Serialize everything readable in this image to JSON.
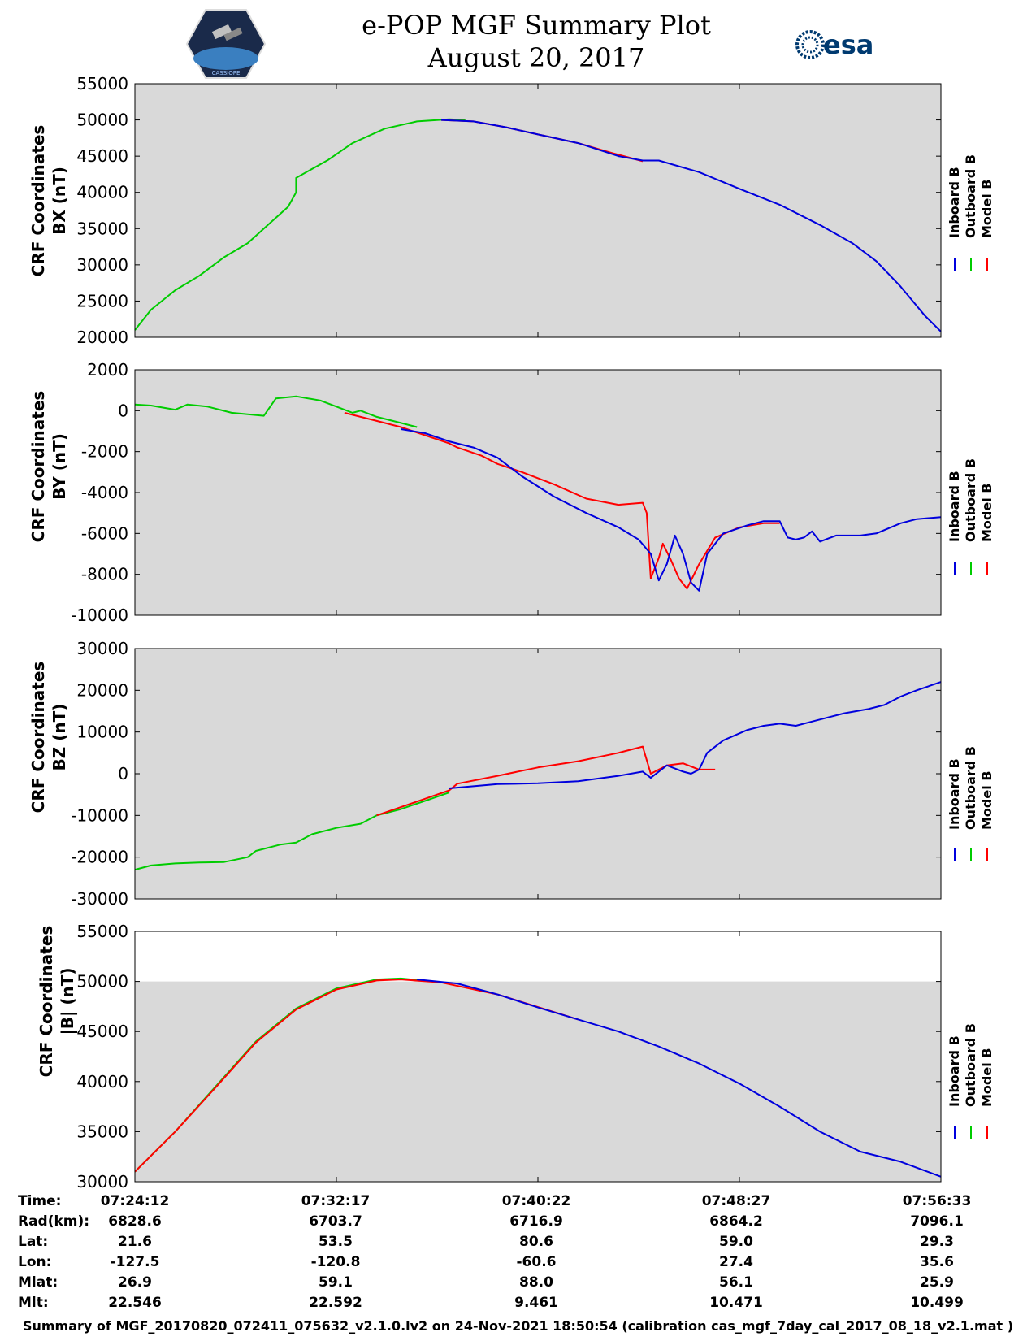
{
  "header": {
    "title_line1": "e-POP MGF Summary Plot",
    "title_line2": "August 20, 2017",
    "left_logo": "cassiope-satellite-logo",
    "left_logo_text": "CASSIOPE",
    "right_logo": "esa-logo",
    "right_logo_text": "esa"
  },
  "legend": {
    "labels": [
      "Inboard B",
      "Outboard B",
      "Model B"
    ],
    "colors": [
      "#0000dd",
      "#00cc00",
      "#ff0000"
    ]
  },
  "colors": {
    "plot_bg": "#d9d9d9",
    "inboard": "#0000dd",
    "outboard": "#00cc00",
    "model": "#ff0000"
  },
  "chart_data": [
    {
      "type": "line",
      "ylabel": "CRF Coordinates\nBX (nT)",
      "ylabel_line1": "CRF Coordinates",
      "ylabel_line2": "BX (nT)",
      "ylim": [
        20000,
        55000
      ],
      "yticks": [
        20000,
        25000,
        30000,
        35000,
        40000,
        45000,
        50000,
        55000
      ],
      "xlim": [
        0,
        1
      ],
      "shade_to": 55000,
      "series": [
        {
          "name": "Outboard B",
          "points": [
            [
              0,
              21000
            ],
            [
              0.02,
              23800
            ],
            [
              0.05,
              26500
            ],
            [
              0.08,
              28500
            ],
            [
              0.11,
              31000
            ],
            [
              0.14,
              33000
            ],
            [
              0.16,
              35000
            ],
            [
              0.19,
              38000
            ],
            [
              0.2,
              40000
            ],
            [
              0.2,
              42000
            ],
            [
              0.24,
              44500
            ],
            [
              0.27,
              46800
            ],
            [
              0.31,
              48800
            ],
            [
              0.35,
              49800
            ],
            [
              0.39,
              50100
            ],
            [
              0.41,
              50000
            ]
          ]
        },
        {
          "name": "Model B",
          "points": [
            [
              0.38,
              50000
            ],
            [
              0.42,
              49800
            ],
            [
              0.46,
              49000
            ],
            [
              0.5,
              48000
            ],
            [
              0.55,
              46800
            ],
            [
              0.59,
              45500
            ],
            [
              0.63,
              44300
            ]
          ]
        },
        {
          "name": "Inboard B",
          "points": [
            [
              0.38,
              50000
            ],
            [
              0.42,
              49800
            ],
            [
              0.46,
              49000
            ],
            [
              0.5,
              48000
            ],
            [
              0.55,
              46800
            ],
            [
              0.6,
              45000
            ],
            [
              0.63,
              44400
            ],
            [
              0.65,
              44400
            ],
            [
              0.7,
              42800
            ],
            [
              0.75,
              40500
            ],
            [
              0.8,
              38300
            ],
            [
              0.85,
              35500
            ],
            [
              0.89,
              33000
            ],
            [
              0.92,
              30500
            ],
            [
              0.95,
              27000
            ],
            [
              0.98,
              23000
            ],
            [
              1,
              20800
            ]
          ]
        }
      ]
    },
    {
      "type": "line",
      "ylabel": "CRF Coordinates\nBY (nT)",
      "ylabel_line1": "CRF Coordinates",
      "ylabel_line2": "BY (nT)",
      "ylim": [
        -10000,
        2000
      ],
      "yticks": [
        -10000,
        -8000,
        -6000,
        -4000,
        -2000,
        0,
        2000
      ],
      "xlim": [
        0,
        1
      ],
      "shade_to": 2000,
      "series": [
        {
          "name": "Outboard B",
          "points": [
            [
              0,
              300
            ],
            [
              0.02,
              250
            ],
            [
              0.05,
              50
            ],
            [
              0.065,
              300
            ],
            [
              0.09,
              200
            ],
            [
              0.12,
              -100
            ],
            [
              0.16,
              -250
            ],
            [
              0.175,
              600
            ],
            [
              0.2,
              700
            ],
            [
              0.23,
              500
            ],
            [
              0.25,
              200
            ],
            [
              0.27,
              -100
            ],
            [
              0.28,
              0
            ],
            [
              0.3,
              -300
            ],
            [
              0.33,
              -600
            ],
            [
              0.35,
              -800
            ]
          ]
        },
        {
          "name": "Model B",
          "points": [
            [
              0.26,
              -100
            ],
            [
              0.3,
              -500
            ],
            [
              0.33,
              -800
            ],
            [
              0.36,
              -1200
            ],
            [
              0.39,
              -1600
            ],
            [
              0.4,
              -1800
            ],
            [
              0.43,
              -2200
            ],
            [
              0.45,
              -2600
            ],
            [
              0.48,
              -3000
            ],
            [
              0.52,
              -3600
            ],
            [
              0.56,
              -4300
            ],
            [
              0.6,
              -4600
            ],
            [
              0.63,
              -4500
            ],
            [
              0.635,
              -5000
            ],
            [
              0.64,
              -8200
            ],
            [
              0.65,
              -7200
            ],
            [
              0.655,
              -6500
            ],
            [
              0.665,
              -7300
            ],
            [
              0.675,
              -8200
            ],
            [
              0.685,
              -8700
            ],
            [
              0.7,
              -7500
            ],
            [
              0.72,
              -6200
            ],
            [
              0.75,
              -5700
            ],
            [
              0.78,
              -5500
            ],
            [
              0.8,
              -5500
            ]
          ]
        },
        {
          "name": "Inboard B",
          "points": [
            [
              0.33,
              -900
            ],
            [
              0.36,
              -1100
            ],
            [
              0.39,
              -1500
            ],
            [
              0.42,
              -1800
            ],
            [
              0.45,
              -2300
            ],
            [
              0.48,
              -3200
            ],
            [
              0.52,
              -4200
            ],
            [
              0.56,
              -5000
            ],
            [
              0.6,
              -5700
            ],
            [
              0.625,
              -6300
            ],
            [
              0.64,
              -7000
            ],
            [
              0.65,
              -8300
            ],
            [
              0.66,
              -7500
            ],
            [
              0.67,
              -6100
            ],
            [
              0.68,
              -7000
            ],
            [
              0.69,
              -8400
            ],
            [
              0.7,
              -8800
            ],
            [
              0.71,
              -7000
            ],
            [
              0.73,
              -6000
            ],
            [
              0.76,
              -5600
            ],
            [
              0.78,
              -5400
            ],
            [
              0.8,
              -5400
            ],
            [
              0.81,
              -6200
            ],
            [
              0.82,
              -6300
            ],
            [
              0.83,
              -6200
            ],
            [
              0.84,
              -5900
            ],
            [
              0.85,
              -6400
            ],
            [
              0.87,
              -6100
            ],
            [
              0.9,
              -6100
            ],
            [
              0.92,
              -6000
            ],
            [
              0.95,
              -5500
            ],
            [
              0.97,
              -5300
            ],
            [
              1,
              -5200
            ]
          ]
        }
      ]
    },
    {
      "type": "line",
      "ylabel": "CRF Coordinates\nBZ (nT)",
      "ylabel_line1": "CRF Coordinates",
      "ylabel_line2": "BZ (nT)",
      "ylim": [
        -30000,
        30000
      ],
      "yticks": [
        -30000,
        -20000,
        -10000,
        0,
        10000,
        20000,
        30000
      ],
      "xlim": [
        0,
        1
      ],
      "shade_to": 30000,
      "series": [
        {
          "name": "Outboard B",
          "points": [
            [
              0,
              -23000
            ],
            [
              0.02,
              -22000
            ],
            [
              0.05,
              -21500
            ],
            [
              0.08,
              -21300
            ],
            [
              0.11,
              -21200
            ],
            [
              0.14,
              -20000
            ],
            [
              0.15,
              -18500
            ],
            [
              0.18,
              -17000
            ],
            [
              0.2,
              -16500
            ],
            [
              0.22,
              -14500
            ],
            [
              0.25,
              -13000
            ],
            [
              0.28,
              -12000
            ],
            [
              0.3,
              -10000
            ],
            [
              0.33,
              -8500
            ],
            [
              0.36,
              -6500
            ],
            [
              0.39,
              -4500
            ]
          ]
        },
        {
          "name": "Model B",
          "points": [
            [
              0.3,
              -10000
            ],
            [
              0.33,
              -8000
            ],
            [
              0.36,
              -6000
            ],
            [
              0.39,
              -4000
            ],
            [
              0.4,
              -2400
            ],
            [
              0.45,
              -500
            ],
            [
              0.5,
              1500
            ],
            [
              0.55,
              3000
            ],
            [
              0.6,
              5000
            ],
            [
              0.63,
              6500
            ],
            [
              0.64,
              0
            ],
            [
              0.66,
              2000
            ],
            [
              0.68,
              2500
            ],
            [
              0.7,
              1000
            ],
            [
              0.72,
              1000
            ]
          ]
        },
        {
          "name": "Inboard B",
          "points": [
            [
              0.39,
              -3500
            ],
            [
              0.45,
              -2500
            ],
            [
              0.5,
              -2300
            ],
            [
              0.55,
              -1800
            ],
            [
              0.6,
              -500
            ],
            [
              0.63,
              500
            ],
            [
              0.64,
              -1000
            ],
            [
              0.66,
              2000
            ],
            [
              0.68,
              500
            ],
            [
              0.69,
              0
            ],
            [
              0.7,
              1000
            ],
            [
              0.71,
              5000
            ],
            [
              0.73,
              8000
            ],
            [
              0.76,
              10500
            ],
            [
              0.78,
              11500
            ],
            [
              0.8,
              12000
            ],
            [
              0.82,
              11500
            ],
            [
              0.84,
              12500
            ],
            [
              0.86,
              13500
            ],
            [
              0.88,
              14500
            ],
            [
              0.91,
              15500
            ],
            [
              0.93,
              16500
            ],
            [
              0.95,
              18500
            ],
            [
              0.97,
              20000
            ],
            [
              1,
              22000
            ]
          ]
        }
      ]
    },
    {
      "type": "line",
      "ylabel": "CRF Coordinates\n|B| (nT)",
      "ylabel_line1": "CRF Coordinates",
      "ylabel_line2": "|B| (nT)",
      "ylim": [
        30000,
        55000
      ],
      "yticks": [
        30000,
        35000,
        40000,
        45000,
        50000,
        55000
      ],
      "xlim": [
        0,
        1
      ],
      "shade_to": 50000,
      "series": [
        {
          "name": "Outboard B",
          "points": [
            [
              0,
              31000
            ],
            [
              0.05,
              35000
            ],
            [
              0.1,
              39500
            ],
            [
              0.15,
              44000
            ],
            [
              0.2,
              47300
            ],
            [
              0.25,
              49300
            ],
            [
              0.3,
              50200
            ],
            [
              0.33,
              50300
            ],
            [
              0.37,
              50000
            ]
          ]
        },
        {
          "name": "Model B",
          "points": [
            [
              0,
              31000
            ],
            [
              0.05,
              35000
            ],
            [
              0.1,
              39400
            ],
            [
              0.15,
              43900
            ],
            [
              0.2,
              47200
            ],
            [
              0.25,
              49200
            ],
            [
              0.3,
              50100
            ],
            [
              0.33,
              50200
            ],
            [
              0.38,
              49900
            ],
            [
              0.45,
              48700
            ],
            [
              0.55,
              46200
            ]
          ]
        },
        {
          "name": "Inboard B",
          "points": [
            [
              0.35,
              50200
            ],
            [
              0.4,
              49800
            ],
            [
              0.45,
              48700
            ],
            [
              0.5,
              47400
            ],
            [
              0.55,
              46200
            ],
            [
              0.6,
              45000
            ],
            [
              0.65,
              43500
            ],
            [
              0.7,
              41800
            ],
            [
              0.75,
              39800
            ],
            [
              0.8,
              37500
            ],
            [
              0.85,
              35000
            ],
            [
              0.9,
              33000
            ],
            [
              0.95,
              32000
            ],
            [
              1,
              30500
            ]
          ]
        }
      ]
    }
  ],
  "ephemeris": {
    "labels": [
      "Time:",
      "Rad(km):",
      "Lat:",
      "Lon:",
      "Mlat:",
      "Mlt:"
    ],
    "columns": [
      [
        "07:24:12",
        "6828.6",
        "21.6",
        "-127.5",
        "26.9",
        "22.546"
      ],
      [
        "07:32:17",
        "6703.7",
        "53.5",
        "-120.8",
        "59.1",
        "22.592"
      ],
      [
        "07:40:22",
        "6716.9",
        "80.6",
        "-60.6",
        "88.0",
        "9.461"
      ],
      [
        "07:48:27",
        "6864.2",
        "59.0",
        "27.4",
        "56.1",
        "10.471"
      ],
      [
        "07:56:33",
        "7096.1",
        "29.3",
        "35.6",
        "25.9",
        "10.499"
      ]
    ]
  },
  "footer": "Summary of MGF_20170820_072411_075632_v2.1.0.lv2 on 24-Nov-2021 18:50:54 (calibration cas_mgf_7day_cal_2017_08_18_v2.1.mat )"
}
